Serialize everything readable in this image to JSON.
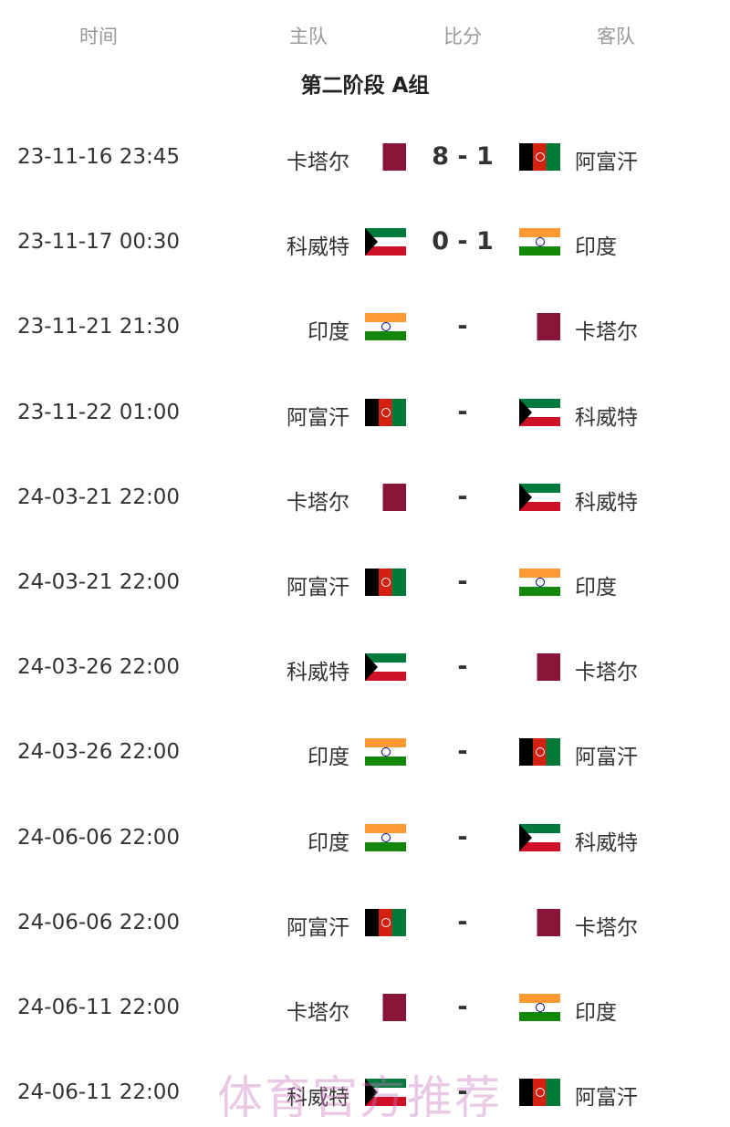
{
  "header": {
    "time": "时间",
    "home": "主队",
    "score": "比分",
    "away": "客队"
  },
  "group_title": "第二阶段 A组",
  "matches": [
    {
      "time": "23-11-16 23:45",
      "home": "卡塔尔",
      "home_flag": "qa",
      "score": "8 - 1",
      "away": "阿富汗",
      "away_flag": "af"
    },
    {
      "time": "23-11-17 00:30",
      "home": "科威特",
      "home_flag": "kw",
      "score": "0 - 1",
      "away": "印度",
      "away_flag": "in"
    },
    {
      "time": "23-11-21 21:30",
      "home": "印度",
      "home_flag": "in",
      "score": "-",
      "away": "卡塔尔",
      "away_flag": "qa"
    },
    {
      "time": "23-11-22 01:00",
      "home": "阿富汗",
      "home_flag": "af",
      "score": "-",
      "away": "科威特",
      "away_flag": "kw"
    },
    {
      "time": "24-03-21 22:00",
      "home": "卡塔尔",
      "home_flag": "qa",
      "score": "-",
      "away": "科威特",
      "away_flag": "kw"
    },
    {
      "time": "24-03-21 22:00",
      "home": "阿富汗",
      "home_flag": "af",
      "score": "-",
      "away": "印度",
      "away_flag": "in"
    },
    {
      "time": "24-03-26 22:00",
      "home": "科威特",
      "home_flag": "kw",
      "score": "-",
      "away": "卡塔尔",
      "away_flag": "qa"
    },
    {
      "time": "24-03-26 22:00",
      "home": "印度",
      "home_flag": "in",
      "score": "-",
      "away": "阿富汗",
      "away_flag": "af"
    },
    {
      "time": "24-06-06 22:00",
      "home": "印度",
      "home_flag": "in",
      "score": "-",
      "away": "科威特",
      "away_flag": "kw"
    },
    {
      "time": "24-06-06 22:00",
      "home": "阿富汗",
      "home_flag": "af",
      "score": "-",
      "away": "卡塔尔",
      "away_flag": "qa"
    },
    {
      "time": "24-06-11 22:00",
      "home": "卡塔尔",
      "home_flag": "qa",
      "score": "-",
      "away": "印度",
      "away_flag": "in"
    },
    {
      "time": "24-06-11 22:00",
      "home": "科威特",
      "home_flag": "kw",
      "score": "-",
      "away": "阿富汗",
      "away_flag": "af"
    }
  ],
  "watermark": "体育官方推荐"
}
